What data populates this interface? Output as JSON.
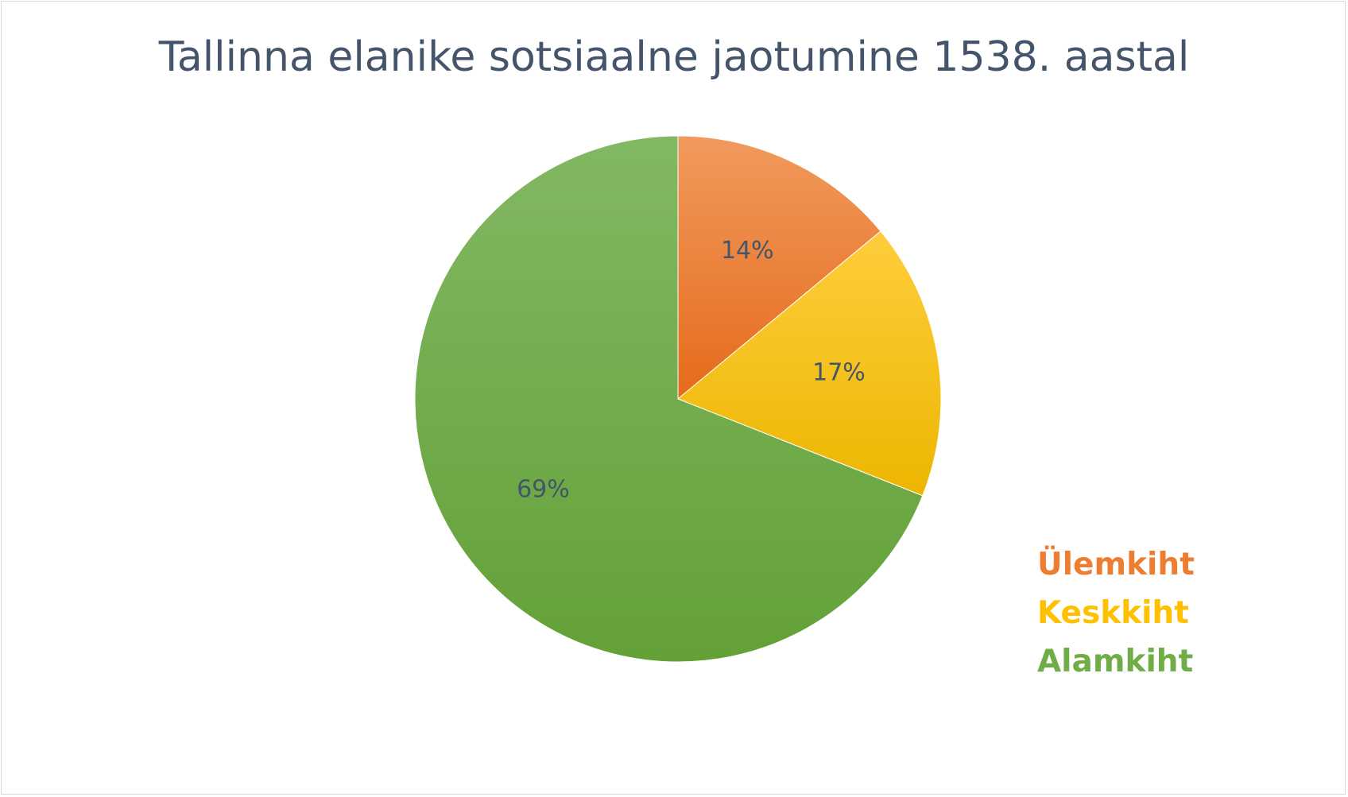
{
  "chart_data": {
    "type": "pie",
    "title": "Tallinna elanike sotsiaalne jaotumine 1538. aastal",
    "slices": [
      {
        "name": "Ülemkiht",
        "value": 14,
        "label": "14%",
        "color": "#ed7d31"
      },
      {
        "name": "Keskkiht",
        "value": 17,
        "label": "17%",
        "color": "#ffc000"
      },
      {
        "name": "Alamkiht",
        "value": 69,
        "label": "69%",
        "color": "#70ad47"
      }
    ],
    "legend": {
      "placement": "bottom-right",
      "entries": [
        "Ülemkiht",
        "Keskkiht",
        "Alamkiht"
      ]
    }
  }
}
